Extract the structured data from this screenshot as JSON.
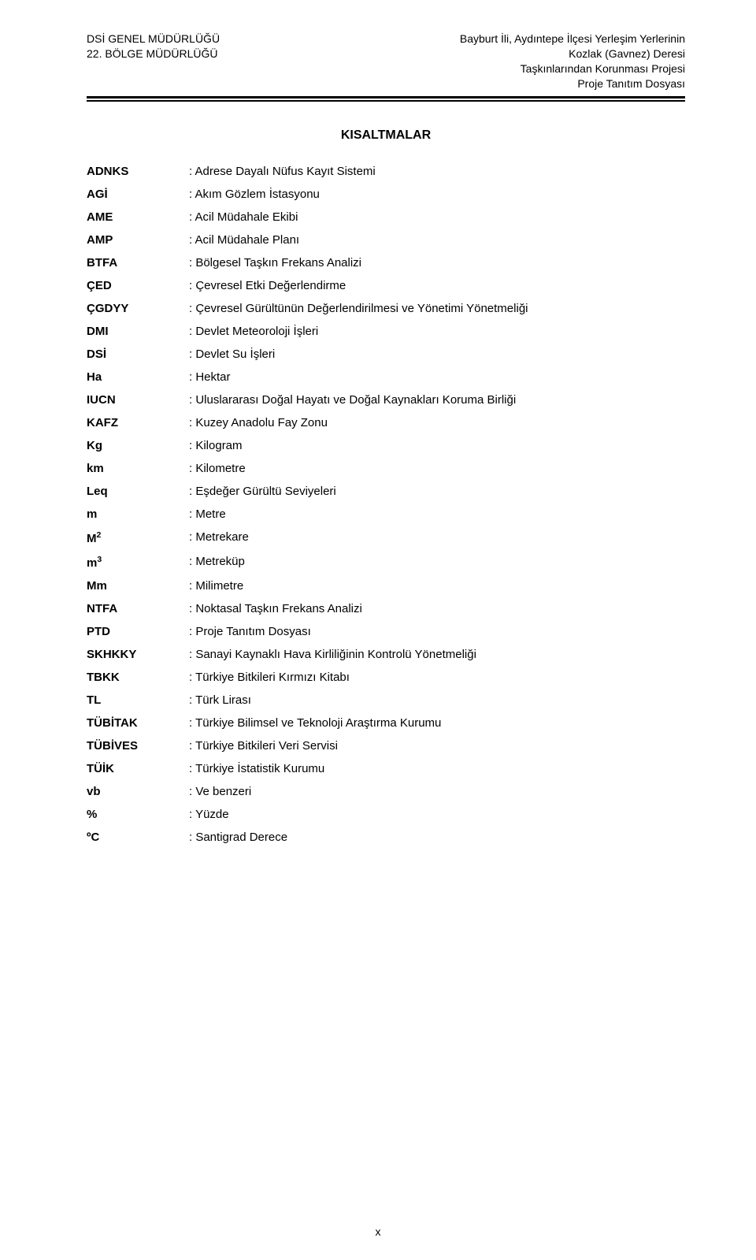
{
  "header": {
    "left_lines": [
      "DSİ GENEL MÜDÜRLÜĞÜ",
      "22. BÖLGE MÜDÜRLÜĞÜ"
    ],
    "right_lines": [
      "Bayburt İli, Aydıntepe İlçesi Yerleşim Yerlerinin",
      "Kozlak (Gavnez) Deresi",
      "Taşkınlarından Korunması Projesi",
      "Proje Tanıtım Dosyası"
    ]
  },
  "section_title": "KISALTMALAR",
  "abbrs": [
    {
      "key": "ADNKS",
      "sup": "",
      "val": ": Adrese Dayalı Nüfus Kayıt Sistemi"
    },
    {
      "key": "AGİ",
      "sup": "",
      "val": ": Akım Gözlem İstasyonu"
    },
    {
      "key": "AME",
      "sup": "",
      "val": ": Acil Müdahale Ekibi"
    },
    {
      "key": "AMP",
      "sup": "",
      "val": ": Acil Müdahale Planı"
    },
    {
      "key": "BTFA",
      "sup": "",
      "val": ": Bölgesel Taşkın Frekans Analizi"
    },
    {
      "key": "ÇED",
      "sup": "",
      "val": ": Çevresel Etki Değerlendirme"
    },
    {
      "key": "ÇGDYY",
      "sup": "",
      "val": ": Çevresel Gürültünün Değerlendirilmesi ve Yönetimi Yönetmeliği"
    },
    {
      "key": "DMI",
      "sup": "",
      "val": ": Devlet Meteoroloji İşleri"
    },
    {
      "key": "DSİ",
      "sup": "",
      "val": ": Devlet Su İşleri"
    },
    {
      "key": "Ha",
      "sup": "",
      "val": ": Hektar"
    },
    {
      "key": "IUCN",
      "sup": "",
      "val": ": Uluslararası Doğal Hayatı ve Doğal Kaynakları Koruma Birliği"
    },
    {
      "key": "KAFZ",
      "sup": "",
      "val": ": Kuzey Anadolu Fay Zonu"
    },
    {
      "key": "Kg",
      "sup": "",
      "val": ": Kilogram"
    },
    {
      "key": "km",
      "sup": "",
      "val": ": Kilometre"
    },
    {
      "key": "Leq",
      "sup": "",
      "val": ": Eşdeğer Gürültü Seviyeleri"
    },
    {
      "key": "m",
      "sup": "",
      "val": ": Metre"
    },
    {
      "key": "M",
      "sup": "2",
      "val": ": Metrekare"
    },
    {
      "key": "m",
      "sup": "3",
      "val": ": Metreküp"
    },
    {
      "key": "Mm",
      "sup": "",
      "val": ": Milimetre"
    },
    {
      "key": "NTFA",
      "sup": "",
      "val": ": Noktasal Taşkın Frekans Analizi"
    },
    {
      "key": "PTD",
      "sup": "",
      "val": ": Proje Tanıtım Dosyası"
    },
    {
      "key": "SKHKKY",
      "sup": "",
      "val": ": Sanayi Kaynaklı Hava Kirliliğinin Kontrolü Yönetmeliği"
    },
    {
      "key": "TBKK",
      "sup": "",
      "val": ": Türkiye Bitkileri Kırmızı Kitabı"
    },
    {
      "key": "TL",
      "sup": "",
      "val": ": Türk Lirası"
    },
    {
      "key": "TÜBİTAK",
      "sup": "",
      "val": ": Türkiye Bilimsel ve Teknoloji Araştırma Kurumu"
    },
    {
      "key": "TÜBİVES",
      "sup": "",
      "val": ": Türkiye Bitkileri Veri Servisi"
    },
    {
      "key": "TÜİK",
      "sup": "",
      "val": ": Türkiye İstatistik Kurumu"
    },
    {
      "key": "vb",
      "sup": "",
      "val": ": Ve benzeri"
    },
    {
      "key": "%",
      "sup": "",
      "val": ": Yüzde"
    },
    {
      "key": "ºC",
      "sup": "",
      "val": ": Santigrad Derece"
    }
  ],
  "page_number": "x"
}
